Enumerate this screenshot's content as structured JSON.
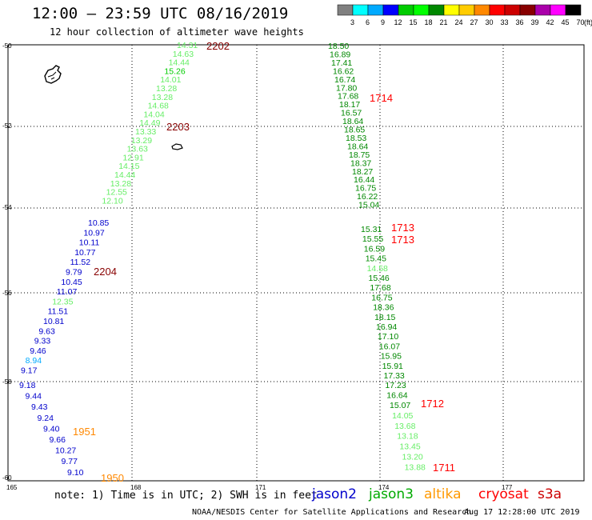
{
  "header": {
    "title": "12:00 – 23:59 UTC 08/16/2019",
    "subtitle": "12 hour collection of altimeter wave heights"
  },
  "colorbar": {
    "labels": [
      "3",
      "6",
      "9",
      "12",
      "15",
      "18",
      "21",
      "24",
      "27",
      "30",
      "33",
      "36",
      "39",
      "42",
      "45",
      "70"
    ],
    "unit": "(ft)",
    "colors": [
      "#808080",
      "#00ffff",
      "#00aaff",
      "#0000ff",
      "#00cc00",
      "#00ff00",
      "#008800",
      "#ffff00",
      "#ffcc00",
      "#ff8800",
      "#ff0000",
      "#cc0000",
      "#880000",
      "#aa00aa",
      "#ff00ff",
      "#000000"
    ]
  },
  "chart_data": {
    "type": "scatter",
    "xlim": [
      165,
      179
    ],
    "ylim": [
      -60.2,
      -49.9
    ],
    "x_ticks": [
      "165",
      "168",
      "171",
      "174",
      "177"
    ],
    "y_ticks": [
      "-50",
      "-52",
      "-54",
      "-56",
      "-58",
      "-60"
    ],
    "passes": [
      {
        "label": "2202",
        "label_color": "#880000",
        "points": [
          {
            "v": "14.31",
            "c": "#66ee66"
          },
          {
            "v": "14.63",
            "c": "#66ee66"
          },
          {
            "v": "14.44",
            "c": "#66ee66"
          },
          {
            "v": "15.26",
            "c": "#00cc00"
          },
          {
            "v": "14.01",
            "c": "#66ee66"
          },
          {
            "v": "13.28",
            "c": "#66ee66"
          },
          {
            "v": "13.28",
            "c": "#66ee66"
          },
          {
            "v": "14.68",
            "c": "#66ee66"
          },
          {
            "v": "14.04",
            "c": "#66ee66"
          },
          {
            "v": "14.49",
            "c": "#66ee66"
          },
          {
            "v": "13.33",
            "c": "#66ee66"
          },
          {
            "v": "13.29",
            "c": "#66ee66"
          },
          {
            "v": "13.63",
            "c": "#66ee66"
          },
          {
            "v": "12.91",
            "c": "#66ee66"
          },
          {
            "v": "14.15",
            "c": "#66ee66"
          },
          {
            "v": "14.44",
            "c": "#66ee66"
          },
          {
            "v": "13.28",
            "c": "#66ee66"
          },
          {
            "v": "12.55",
            "c": "#66ee66"
          },
          {
            "v": "12.10",
            "c": "#66ee66"
          }
        ]
      },
      {
        "label": "2204",
        "label_color": "#880000",
        "points": [
          {
            "v": "10.85",
            "c": "#0000cc"
          },
          {
            "v": "10.97",
            "c": "#0000cc"
          },
          {
            "v": "10.11",
            "c": "#0000cc"
          },
          {
            "v": "10.77",
            "c": "#0000cc"
          },
          {
            "v": "11.52",
            "c": "#0000cc"
          },
          {
            "v": "9.79",
            "c": "#0000cc"
          },
          {
            "v": "10.45",
            "c": "#0000cc"
          },
          {
            "v": "11.07",
            "c": "#0000cc"
          },
          {
            "v": "12.35",
            "c": "#66ee66"
          },
          {
            "v": "11.51",
            "c": "#0000cc"
          },
          {
            "v": "10.81",
            "c": "#0000cc"
          },
          {
            "v": "9.63",
            "c": "#0000cc"
          },
          {
            "v": "9.33",
            "c": "#0000cc"
          },
          {
            "v": "9.46",
            "c": "#0000cc"
          },
          {
            "v": "8.94",
            "c": "#00aaff"
          },
          {
            "v": "9.17",
            "c": "#0000cc"
          }
        ]
      },
      {
        "label": "1951",
        "label_color": "#ff8800",
        "points": [
          {
            "v": "9.18",
            "c": "#0000cc"
          },
          {
            "v": "9.44",
            "c": "#0000cc"
          },
          {
            "v": "9.43",
            "c": "#0000cc"
          },
          {
            "v": "9.24",
            "c": "#0000cc"
          },
          {
            "v": "9.40",
            "c": "#0000cc"
          },
          {
            "v": "9.66",
            "c": "#0000cc"
          },
          {
            "v": "10.27",
            "c": "#0000cc"
          },
          {
            "v": "9.77",
            "c": "#0000cc"
          },
          {
            "v": "9.10",
            "c": "#0000cc"
          }
        ]
      },
      {
        "label": "1714",
        "label_color": "#ff0000",
        "points": [
          {
            "v": "18.50",
            "c": "#008800"
          },
          {
            "v": "16.89",
            "c": "#008800"
          },
          {
            "v": "17.41",
            "c": "#008800"
          },
          {
            "v": "16.62",
            "c": "#008800"
          },
          {
            "v": "16.74",
            "c": "#008800"
          },
          {
            "v": "17.80",
            "c": "#008800"
          },
          {
            "v": "17.68",
            "c": "#008800"
          },
          {
            "v": "18.17",
            "c": "#008800"
          },
          {
            "v": "16.57",
            "c": "#008800"
          },
          {
            "v": "18.64",
            "c": "#008800"
          },
          {
            "v": "18.65",
            "c": "#008800"
          },
          {
            "v": "18.53",
            "c": "#008800"
          },
          {
            "v": "18.64",
            "c": "#008800"
          },
          {
            "v": "18.75",
            "c": "#008800"
          },
          {
            "v": "18.37",
            "c": "#008800"
          },
          {
            "v": "18.27",
            "c": "#008800"
          },
          {
            "v": "16.44",
            "c": "#008800"
          },
          {
            "v": "16.75",
            "c": "#008800"
          },
          {
            "v": "16.22",
            "c": "#008800"
          },
          {
            "v": "15.04",
            "c": "#008800"
          }
        ]
      },
      {
        "label": "1713",
        "label_color": "#ff0000",
        "points": [
          {
            "v": "15.31",
            "c": "#008800"
          },
          {
            "v": "15.55",
            "c": "#008800"
          },
          {
            "v": "16.59",
            "c": "#008800"
          },
          {
            "v": "15.45",
            "c": "#008800"
          },
          {
            "v": "14.58",
            "c": "#66ee66"
          },
          {
            "v": "15.46",
            "c": "#008800"
          },
          {
            "v": "17.68",
            "c": "#008800"
          },
          {
            "v": "16.75",
            "c": "#008800"
          },
          {
            "v": "18.36",
            "c": "#008800"
          },
          {
            "v": "18.15",
            "c": "#008800"
          },
          {
            "v": "16.94",
            "c": "#008800"
          },
          {
            "v": "17.10",
            "c": "#008800"
          },
          {
            "v": "16.07",
            "c": "#008800"
          },
          {
            "v": "15.95",
            "c": "#008800"
          },
          {
            "v": "15.91",
            "c": "#008800"
          },
          {
            "v": "17.33",
            "c": "#008800"
          },
          {
            "v": "17.23",
            "c": "#008800"
          },
          {
            "v": "16.64",
            "c": "#008800"
          }
        ]
      },
      {
        "label": "1712",
        "label_color": "#ff0000",
        "points": [
          {
            "v": "15.07",
            "c": "#008800"
          },
          {
            "v": "14.05",
            "c": "#66ee66"
          },
          {
            "v": "13.68",
            "c": "#66ee66"
          },
          {
            "v": "13.18",
            "c": "#66ee66"
          },
          {
            "v": "13.45",
            "c": "#66ee66"
          },
          {
            "v": "13.20",
            "c": "#66ee66"
          },
          {
            "v": "13.88",
            "c": "#66ee66"
          }
        ]
      }
    ],
    "pass_labels": [
      {
        "text": "2202",
        "color": "#880000"
      },
      {
        "text": "2203",
        "color": "#880000"
      },
      {
        "text": "2204",
        "color": "#880000"
      },
      {
        "text": "1951",
        "color": "#ff8800"
      },
      {
        "text": "1950",
        "color": "#ff8800"
      },
      {
        "text": "1714",
        "color": "#ff0000"
      },
      {
        "text": "1713",
        "color": "#ff0000"
      },
      {
        "text": "1713",
        "color": "#ff0000"
      },
      {
        "text": "1712",
        "color": "#ff0000"
      },
      {
        "text": "1711",
        "color": "#ff0000"
      }
    ]
  },
  "footer": {
    "note": "note: 1) Time is in UTC; 2) SWH is in feet",
    "satellites": [
      {
        "name": "jason2",
        "color": "#0000cc"
      },
      {
        "name": "jason3",
        "color": "#00aa00"
      },
      {
        "name": "altika",
        "color": "#ff9900"
      },
      {
        "name": "cryosat",
        "color": "#ff0000"
      },
      {
        "name": "s3a",
        "color": "#cc0000"
      }
    ],
    "credit": "NOAA/NESDIS Center for Satellite Applications and Research",
    "timestamp": "Aug 17 12:28:00 UTC 2019"
  }
}
